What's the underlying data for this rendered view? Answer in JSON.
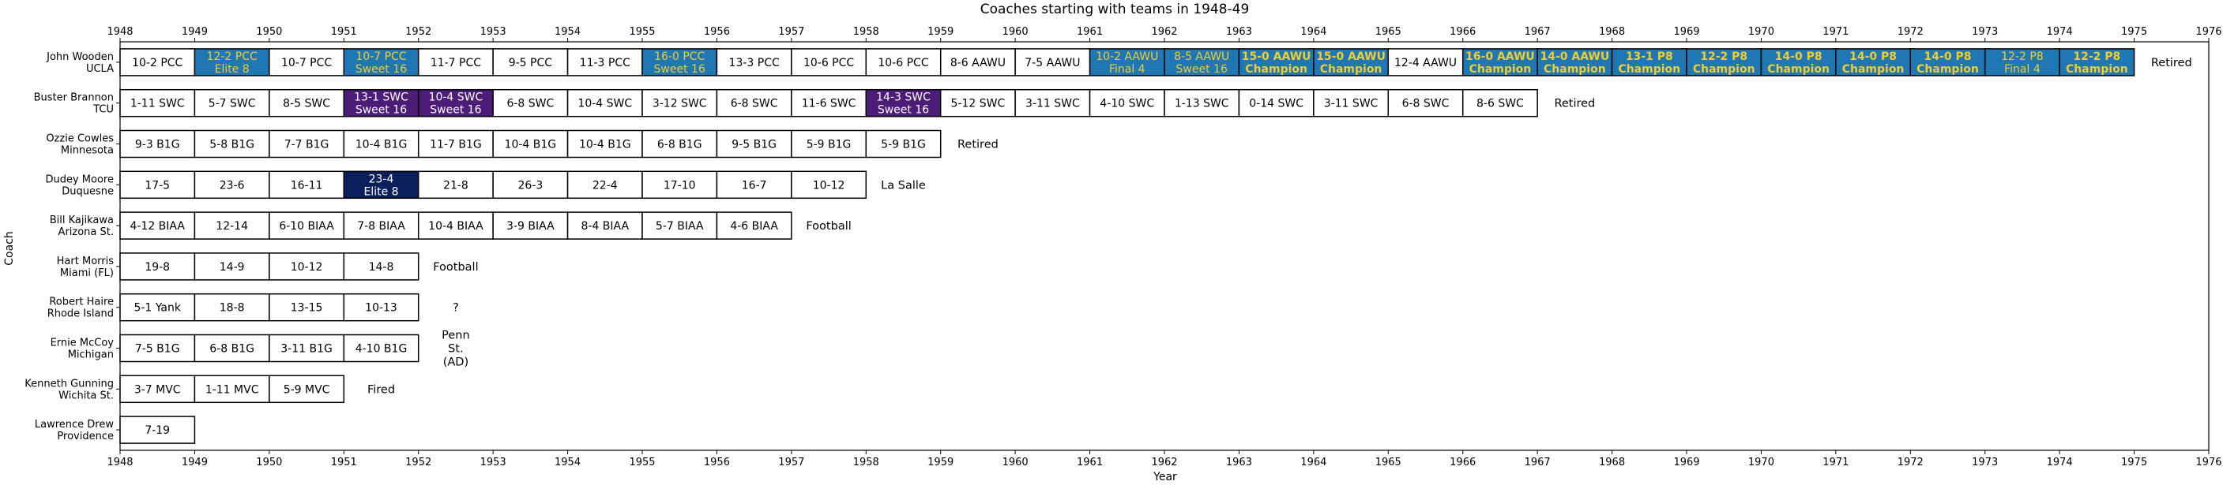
{
  "chart_data": {
    "type": "timeline",
    "title": "Coaches starting with teams in 1948-49",
    "xlabel": "Year",
    "ylabel": "Coach",
    "xlim": [
      1948,
      1976
    ],
    "x_ticks": [
      "1948",
      "1949",
      "1950",
      "1951",
      "1952",
      "1953",
      "1954",
      "1955",
      "1956",
      "1957",
      "1958",
      "1959",
      "1960",
      "1961",
      "1962",
      "1963",
      "1964",
      "1965",
      "1966",
      "1967",
      "1968",
      "1969",
      "1970",
      "1971",
      "1972",
      "1973",
      "1974",
      "1975",
      "1976"
    ],
    "colors": {
      "regular": "#ffffff",
      "elite8": "#1f77b4",
      "final4": "#1f77b4",
      "sweet16_blue": "#1f77b4",
      "champion": "#1f77b4",
      "sweet16_purple": "#4b1c78",
      "elite8_navy": "#0b1f5c",
      "gold_text": "#f2cd2e",
      "border": "#000000"
    },
    "coaches": [
      {
        "label": [
          "John Wooden",
          "UCLA"
        ],
        "after": "Retired",
        "seasons": [
          {
            "year": 1948,
            "record": "10-2 PCC",
            "note": "",
            "style": "regular"
          },
          {
            "year": 1949,
            "record": "12-2 PCC",
            "note": "Elite 8",
            "style": "elite8"
          },
          {
            "year": 1950,
            "record": "10-7 PCC",
            "note": "",
            "style": "regular"
          },
          {
            "year": 1951,
            "record": "10-7 PCC",
            "note": "Sweet 16",
            "style": "sweet16_blue"
          },
          {
            "year": 1952,
            "record": "11-7 PCC",
            "note": "",
            "style": "regular"
          },
          {
            "year": 1953,
            "record": "9-5 PCC",
            "note": "",
            "style": "regular"
          },
          {
            "year": 1954,
            "record": "11-3 PCC",
            "note": "",
            "style": "regular"
          },
          {
            "year": 1955,
            "record": "16-0 PCC",
            "note": "Sweet 16",
            "style": "sweet16_blue"
          },
          {
            "year": 1956,
            "record": "13-3 PCC",
            "note": "",
            "style": "regular"
          },
          {
            "year": 1957,
            "record": "10-6 PCC",
            "note": "",
            "style": "regular"
          },
          {
            "year": 1958,
            "record": "10-6 PCC",
            "note": "",
            "style": "regular"
          },
          {
            "year": 1959,
            "record": "8-6 AAWU",
            "note": "",
            "style": "regular"
          },
          {
            "year": 1960,
            "record": "7-5 AAWU",
            "note": "",
            "style": "regular"
          },
          {
            "year": 1961,
            "record": "10-2 AAWU",
            "note": "Final 4",
            "style": "final4"
          },
          {
            "year": 1962,
            "record": "8-5 AAWU",
            "note": "Sweet 16",
            "style": "sweet16_blue"
          },
          {
            "year": 1963,
            "record": "15-0 AAWU",
            "note": "Champion",
            "style": "champion"
          },
          {
            "year": 1964,
            "record": "15-0 AAWU",
            "note": "Champion",
            "style": "champion"
          },
          {
            "year": 1965,
            "record": "12-4 AAWU",
            "note": "",
            "style": "regular"
          },
          {
            "year": 1966,
            "record": "16-0 AAWU",
            "note": "Champion",
            "style": "champion"
          },
          {
            "year": 1967,
            "record": "14-0 AAWU",
            "note": "Champion",
            "style": "champion"
          },
          {
            "year": 1968,
            "record": "13-1 P8",
            "note": "Champion",
            "style": "champion"
          },
          {
            "year": 1969,
            "record": "12-2 P8",
            "note": "Champion",
            "style": "champion"
          },
          {
            "year": 1970,
            "record": "14-0 P8",
            "note": "Champion",
            "style": "champion"
          },
          {
            "year": 1971,
            "record": "14-0 P8",
            "note": "Champion",
            "style": "champion"
          },
          {
            "year": 1972,
            "record": "14-0 P8",
            "note": "Champion",
            "style": "champion"
          },
          {
            "year": 1973,
            "record": "12-2 P8",
            "note": "Final 4",
            "style": "final4"
          },
          {
            "year": 1974,
            "record": "12-2 P8",
            "note": "Champion",
            "style": "champion"
          }
        ]
      },
      {
        "label": [
          "Buster Brannon",
          "TCU"
        ],
        "after": "Retired",
        "seasons": [
          {
            "year": 1948,
            "record": "1-11 SWC",
            "note": "",
            "style": "regular"
          },
          {
            "year": 1949,
            "record": "5-7 SWC",
            "note": "",
            "style": "regular"
          },
          {
            "year": 1950,
            "record": "8-5 SWC",
            "note": "",
            "style": "regular"
          },
          {
            "year": 1951,
            "record": "13-1 SWC",
            "note": "Sweet 16",
            "style": "sweet16_purple"
          },
          {
            "year": 1952,
            "record": "10-4 SWC",
            "note": "Sweet 16",
            "style": "sweet16_purple"
          },
          {
            "year": 1953,
            "record": "6-8 SWC",
            "note": "",
            "style": "regular"
          },
          {
            "year": 1954,
            "record": "10-4 SWC",
            "note": "",
            "style": "regular"
          },
          {
            "year": 1955,
            "record": "3-12 SWC",
            "note": "",
            "style": "regular"
          },
          {
            "year": 1956,
            "record": "6-8 SWC",
            "note": "",
            "style": "regular"
          },
          {
            "year": 1957,
            "record": "11-6 SWC",
            "note": "",
            "style": "regular"
          },
          {
            "year": 1958,
            "record": "14-3 SWC",
            "note": "Sweet 16",
            "style": "sweet16_purple"
          },
          {
            "year": 1959,
            "record": "5-12 SWC",
            "note": "",
            "style": "regular"
          },
          {
            "year": 1960,
            "record": "3-11 SWC",
            "note": "",
            "style": "regular"
          },
          {
            "year": 1961,
            "record": "4-10 SWC",
            "note": "",
            "style": "regular"
          },
          {
            "year": 1962,
            "record": "1-13 SWC",
            "note": "",
            "style": "regular"
          },
          {
            "year": 1963,
            "record": "0-14 SWC",
            "note": "",
            "style": "regular"
          },
          {
            "year": 1964,
            "record": "3-11 SWC",
            "note": "",
            "style": "regular"
          },
          {
            "year": 1965,
            "record": "6-8 SWC",
            "note": "",
            "style": "regular"
          },
          {
            "year": 1966,
            "record": "8-6 SWC",
            "note": "",
            "style": "regular"
          }
        ]
      },
      {
        "label": [
          "Ozzie Cowles",
          "Minnesota"
        ],
        "after": "Retired",
        "seasons": [
          {
            "year": 1948,
            "record": "9-3 B1G",
            "note": "",
            "style": "regular"
          },
          {
            "year": 1949,
            "record": "5-8 B1G",
            "note": "",
            "style": "regular"
          },
          {
            "year": 1950,
            "record": "7-7 B1G",
            "note": "",
            "style": "regular"
          },
          {
            "year": 1951,
            "record": "10-4 B1G",
            "note": "",
            "style": "regular"
          },
          {
            "year": 1952,
            "record": "11-7 B1G",
            "note": "",
            "style": "regular"
          },
          {
            "year": 1953,
            "record": "10-4 B1G",
            "note": "",
            "style": "regular"
          },
          {
            "year": 1954,
            "record": "10-4 B1G",
            "note": "",
            "style": "regular"
          },
          {
            "year": 1955,
            "record": "6-8 B1G",
            "note": "",
            "style": "regular"
          },
          {
            "year": 1956,
            "record": "9-5 B1G",
            "note": "",
            "style": "regular"
          },
          {
            "year": 1957,
            "record": "5-9 B1G",
            "note": "",
            "style": "regular"
          },
          {
            "year": 1958,
            "record": "5-9 B1G",
            "note": "",
            "style": "regular"
          }
        ]
      },
      {
        "label": [
          "Dudey Moore",
          "Duquesne"
        ],
        "after": "La Salle",
        "seasons": [
          {
            "year": 1948,
            "record": "17-5",
            "note": "",
            "style": "regular"
          },
          {
            "year": 1949,
            "record": "23-6",
            "note": "",
            "style": "regular"
          },
          {
            "year": 1950,
            "record": "16-11",
            "note": "",
            "style": "regular"
          },
          {
            "year": 1951,
            "record": "23-4",
            "note": "Elite 8",
            "style": "elite8_navy"
          },
          {
            "year": 1952,
            "record": "21-8",
            "note": "",
            "style": "regular"
          },
          {
            "year": 1953,
            "record": "26-3",
            "note": "",
            "style": "regular"
          },
          {
            "year": 1954,
            "record": "22-4",
            "note": "",
            "style": "regular"
          },
          {
            "year": 1955,
            "record": "17-10",
            "note": "",
            "style": "regular"
          },
          {
            "year": 1956,
            "record": "16-7",
            "note": "",
            "style": "regular"
          },
          {
            "year": 1957,
            "record": "10-12",
            "note": "",
            "style": "regular"
          }
        ]
      },
      {
        "label": [
          "Bill Kajikawa",
          "Arizona St."
        ],
        "after": "Football",
        "seasons": [
          {
            "year": 1948,
            "record": "4-12 BIAA",
            "note": "",
            "style": "regular"
          },
          {
            "year": 1949,
            "record": "12-14",
            "note": "",
            "style": "regular"
          },
          {
            "year": 1950,
            "record": "6-10 BIAA",
            "note": "",
            "style": "regular"
          },
          {
            "year": 1951,
            "record": "7-8 BIAA",
            "note": "",
            "style": "regular"
          },
          {
            "year": 1952,
            "record": "10-4 BIAA",
            "note": "",
            "style": "regular"
          },
          {
            "year": 1953,
            "record": "3-9 BIAA",
            "note": "",
            "style": "regular"
          },
          {
            "year": 1954,
            "record": "8-4 BIAA",
            "note": "",
            "style": "regular"
          },
          {
            "year": 1955,
            "record": "5-7 BIAA",
            "note": "",
            "style": "regular"
          },
          {
            "year": 1956,
            "record": "4-6 BIAA",
            "note": "",
            "style": "regular"
          }
        ]
      },
      {
        "label": [
          "Hart Morris",
          "Miami (FL)"
        ],
        "after": "Football",
        "seasons": [
          {
            "year": 1948,
            "record": "19-8",
            "note": "",
            "style": "regular"
          },
          {
            "year": 1949,
            "record": "14-9",
            "note": "",
            "style": "regular"
          },
          {
            "year": 1950,
            "record": "10-12",
            "note": "",
            "style": "regular"
          },
          {
            "year": 1951,
            "record": "14-8",
            "note": "",
            "style": "regular"
          }
        ]
      },
      {
        "label": [
          "Robert Haire",
          "Rhode Island"
        ],
        "after": "?",
        "seasons": [
          {
            "year": 1948,
            "record": "5-1 Yank",
            "note": "",
            "style": "regular"
          },
          {
            "year": 1949,
            "record": "18-8",
            "note": "",
            "style": "regular"
          },
          {
            "year": 1950,
            "record": "13-15",
            "note": "",
            "style": "regular"
          },
          {
            "year": 1951,
            "record": "10-13",
            "note": "",
            "style": "regular"
          }
        ]
      },
      {
        "label": [
          "Ernie McCoy",
          "Michigan"
        ],
        "after": "Penn\nSt.\n(AD)",
        "seasons": [
          {
            "year": 1948,
            "record": "7-5 B1G",
            "note": "",
            "style": "regular"
          },
          {
            "year": 1949,
            "record": "6-8 B1G",
            "note": "",
            "style": "regular"
          },
          {
            "year": 1950,
            "record": "3-11 B1G",
            "note": "",
            "style": "regular"
          },
          {
            "year": 1951,
            "record": "4-10 B1G",
            "note": "",
            "style": "regular"
          }
        ]
      },
      {
        "label": [
          "Kenneth Gunning",
          "Wichita St."
        ],
        "after": "Fired",
        "seasons": [
          {
            "year": 1948,
            "record": "3-7 MVC",
            "note": "",
            "style": "regular"
          },
          {
            "year": 1949,
            "record": "1-11 MVC",
            "note": "",
            "style": "regular"
          },
          {
            "year": 1950,
            "record": "5-9 MVC",
            "note": "",
            "style": "regular"
          }
        ]
      },
      {
        "label": [
          "Lawrence Drew",
          "Providence"
        ],
        "after": "",
        "seasons": [
          {
            "year": 1948,
            "record": "7-19",
            "note": "",
            "style": "regular"
          }
        ]
      }
    ]
  }
}
